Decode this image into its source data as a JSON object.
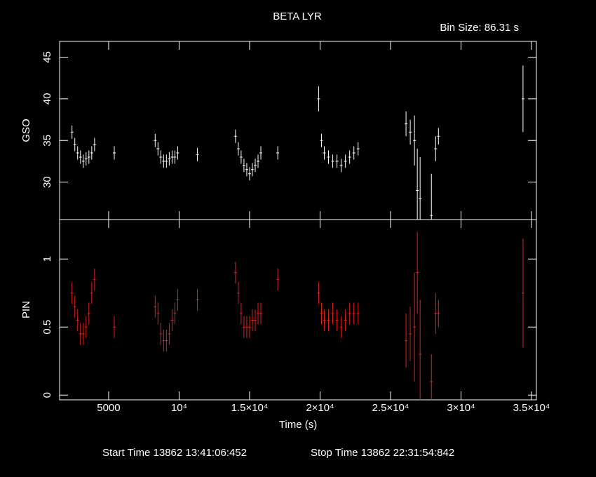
{
  "title": "BETA LYR",
  "subtitle": "Bin Size: 86.31 s",
  "footer": {
    "start": "Start Time 13862 13:41:06:452",
    "stop": "Stop Time 13862 22:31:54:842"
  },
  "chart_data": [
    {
      "type": "errorbar",
      "ylabel": "GSO",
      "xlim": [
        1520,
        35350
      ],
      "xticks": [
        5000,
        {
          "value": 10000,
          "label": "10⁴"
        },
        {
          "value": 15000,
          "label": "1.5×10⁴"
        },
        {
          "value": 20000,
          "label": "2×10⁴"
        },
        {
          "value": 25000,
          "label": "2.5×10⁴"
        },
        {
          "value": 30000,
          "label": "3×10⁴"
        },
        {
          "value": 35000,
          "label": "3.5×10⁴"
        }
      ],
      "ylim": [
        25.5,
        46.9
      ],
      "yticks": [
        30,
        35,
        40,
        45
      ],
      "series": [
        {
          "color": "#ffffff",
          "x": [
            2400,
            2600,
            2800,
            3000,
            3200,
            3400,
            3600,
            3800,
            4000,
            5400,
            8300,
            8500,
            8700,
            8900,
            9100,
            9300,
            9500,
            9700,
            9900,
            11300,
            14000,
            14200,
            14400,
            14600,
            14800,
            15000,
            15200,
            15400,
            15600,
            15800,
            17000,
            19900,
            20100,
            20300,
            20600,
            20900,
            21200,
            21500,
            21800,
            22100,
            22400,
            22700,
            26100,
            26400,
            26700,
            26900,
            27100,
            27900,
            28200,
            28400,
            34400
          ],
          "values": [
            36,
            34.5,
            33.5,
            33,
            32.5,
            32.8,
            33,
            33.5,
            34.5,
            33.5,
            35,
            34,
            33,
            32.5,
            32.5,
            32.8,
            33,
            33,
            33.5,
            33.3,
            35.5,
            34,
            33,
            32,
            31.5,
            31,
            31.5,
            32,
            32.5,
            33.5,
            33.5,
            40,
            35,
            33.5,
            33,
            32.5,
            32.5,
            32,
            32.5,
            33,
            33.5,
            34,
            37,
            36,
            35,
            29,
            28,
            26,
            34,
            35.5,
            40
          ],
          "errors": [
            0.8,
            0.8,
            0.8,
            0.8,
            0.8,
            0.8,
            0.8,
            0.8,
            0.8,
            0.8,
            0.8,
            0.8,
            0.8,
            0.8,
            0.8,
            0.8,
            0.8,
            0.8,
            0.8,
            0.8,
            0.8,
            0.8,
            0.8,
            0.8,
            0.8,
            0.8,
            0.8,
            0.8,
            0.8,
            0.8,
            0.8,
            1.5,
            0.8,
            0.8,
            0.8,
            0.8,
            0.8,
            0.8,
            0.8,
            0.8,
            0.8,
            0.8,
            1.5,
            1.5,
            3,
            5,
            5,
            5,
            1.5,
            1,
            4
          ]
        }
      ]
    },
    {
      "type": "errorbar",
      "ylabel": "PIN",
      "xlabel": "Time (s)",
      "xlim": [
        1520,
        35350
      ],
      "xticks": [
        5000,
        {
          "value": 10000,
          "label": "10⁴"
        },
        {
          "value": 15000,
          "label": "1.5×10⁴"
        },
        {
          "value": 20000,
          "label": "2×10⁴"
        },
        {
          "value": 25000,
          "label": "2.5×10⁴"
        },
        {
          "value": 30000,
          "label": "3×10⁴"
        },
        {
          "value": 35000,
          "label": "3.5×10⁴"
        }
      ],
      "ylim": [
        -0.035,
        1.29
      ],
      "yticks": [
        0,
        0.5,
        1
      ],
      "series": [
        {
          "color": "#e0201c",
          "x": [
            2400,
            2600,
            2800,
            3000,
            3200,
            3400,
            3600,
            3800,
            4000,
            5400,
            8300,
            8500,
            8700,
            8900,
            9100,
            9300,
            9500,
            9700,
            9900,
            11300,
            14000,
            14200,
            14400,
            14600,
            14800,
            15000,
            15200,
            15400,
            15600,
            15800,
            17000,
            19900,
            20100,
            20300,
            20600,
            20900,
            21200,
            21500,
            21800,
            22100,
            22400,
            22700,
            26100,
            26400,
            26700,
            26900,
            27100,
            27900,
            28200,
            28400,
            34400
          ],
          "values": [
            0.75,
            0.65,
            0.55,
            0.45,
            0.45,
            0.5,
            0.6,
            0.75,
            0.85,
            0.5,
            0.65,
            0.6,
            0.45,
            0.4,
            0.4,
            0.45,
            0.55,
            0.6,
            0.7,
            0.7,
            0.9,
            0.75,
            0.6,
            0.5,
            0.5,
            0.5,
            0.55,
            0.55,
            0.6,
            0.6,
            0.85,
            0.75,
            0.6,
            0.55,
            0.55,
            0.6,
            0.55,
            0.5,
            0.55,
            0.6,
            0.6,
            0.6,
            0.4,
            0.45,
            0.5,
            0.9,
            0.3,
            0.1,
            0.6,
            0.6,
            0.75
          ],
          "errors": [
            0.08,
            0.08,
            0.08,
            0.08,
            0.08,
            0.08,
            0.08,
            0.08,
            0.08,
            0.08,
            0.08,
            0.08,
            0.08,
            0.08,
            0.08,
            0.08,
            0.08,
            0.08,
            0.08,
            0.08,
            0.08,
            0.08,
            0.08,
            0.08,
            0.08,
            0.08,
            0.08,
            0.08,
            0.08,
            0.08,
            0.08,
            0.08,
            0.08,
            0.08,
            0.08,
            0.08,
            0.08,
            0.08,
            0.08,
            0.08,
            0.08,
            0.08,
            0.2,
            0.2,
            0.4,
            0.3,
            0.4,
            0.2,
            0.15,
            0.1,
            0.4
          ]
        }
      ]
    }
  ]
}
